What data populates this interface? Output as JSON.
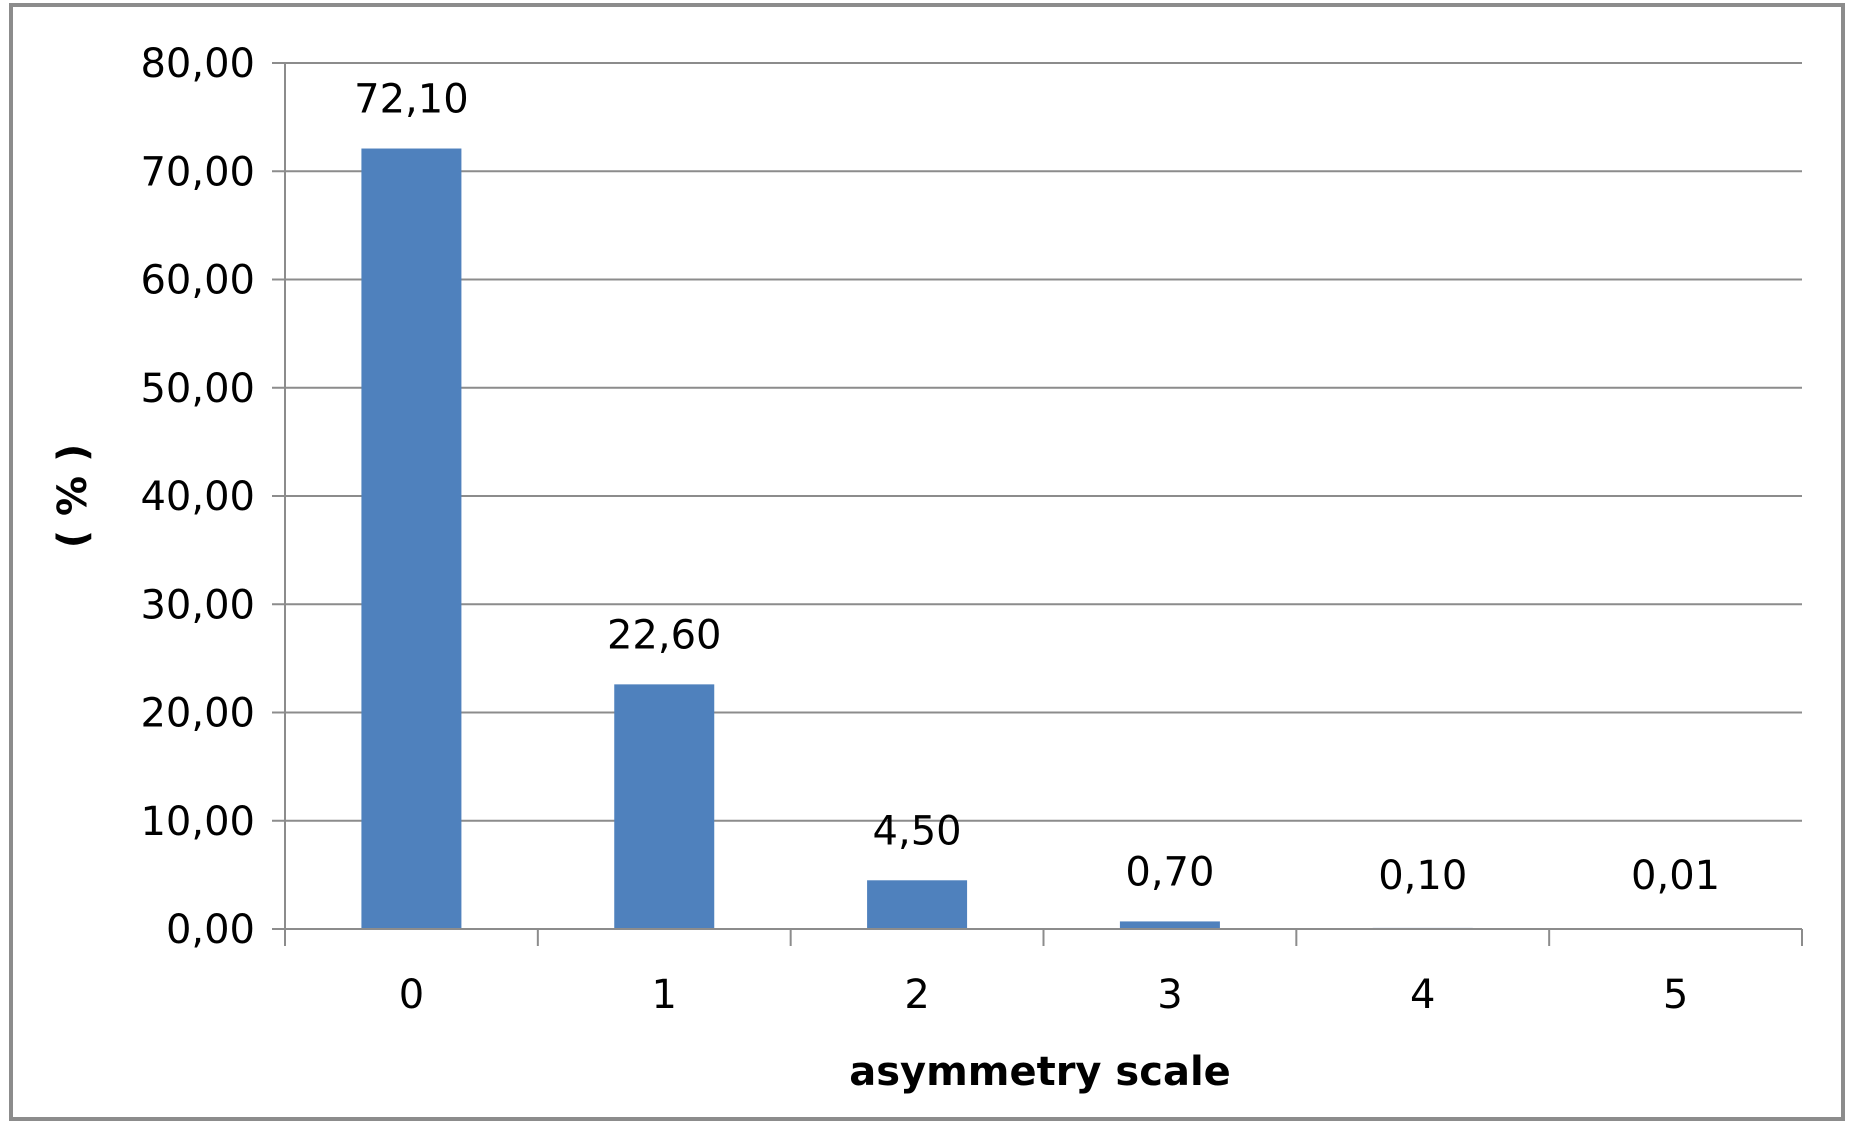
{
  "chart_data": {
    "type": "bar",
    "categories": [
      "0",
      "1",
      "2",
      "3",
      "4",
      "5"
    ],
    "values": [
      72.1,
      22.6,
      4.5,
      0.7,
      0.1,
      0.01
    ],
    "data_labels": [
      "72,10",
      "22,60",
      "4,50",
      "0,70",
      "0,10",
      "0,01"
    ],
    "xlabel": "asymmetry scale",
    "ylabel": "( % )",
    "ylim": [
      0,
      80
    ],
    "yticks": [
      0,
      10,
      20,
      30,
      40,
      50,
      60,
      70,
      80
    ],
    "ytick_labels": [
      "0,00",
      "10,00",
      "20,00",
      "30,00",
      "40,00",
      "50,00",
      "60,00",
      "70,00",
      "80,00"
    ],
    "grid": true,
    "legend": "none",
    "bar_color": "#4f81bd",
    "grid_color": "#8c8c8c"
  }
}
